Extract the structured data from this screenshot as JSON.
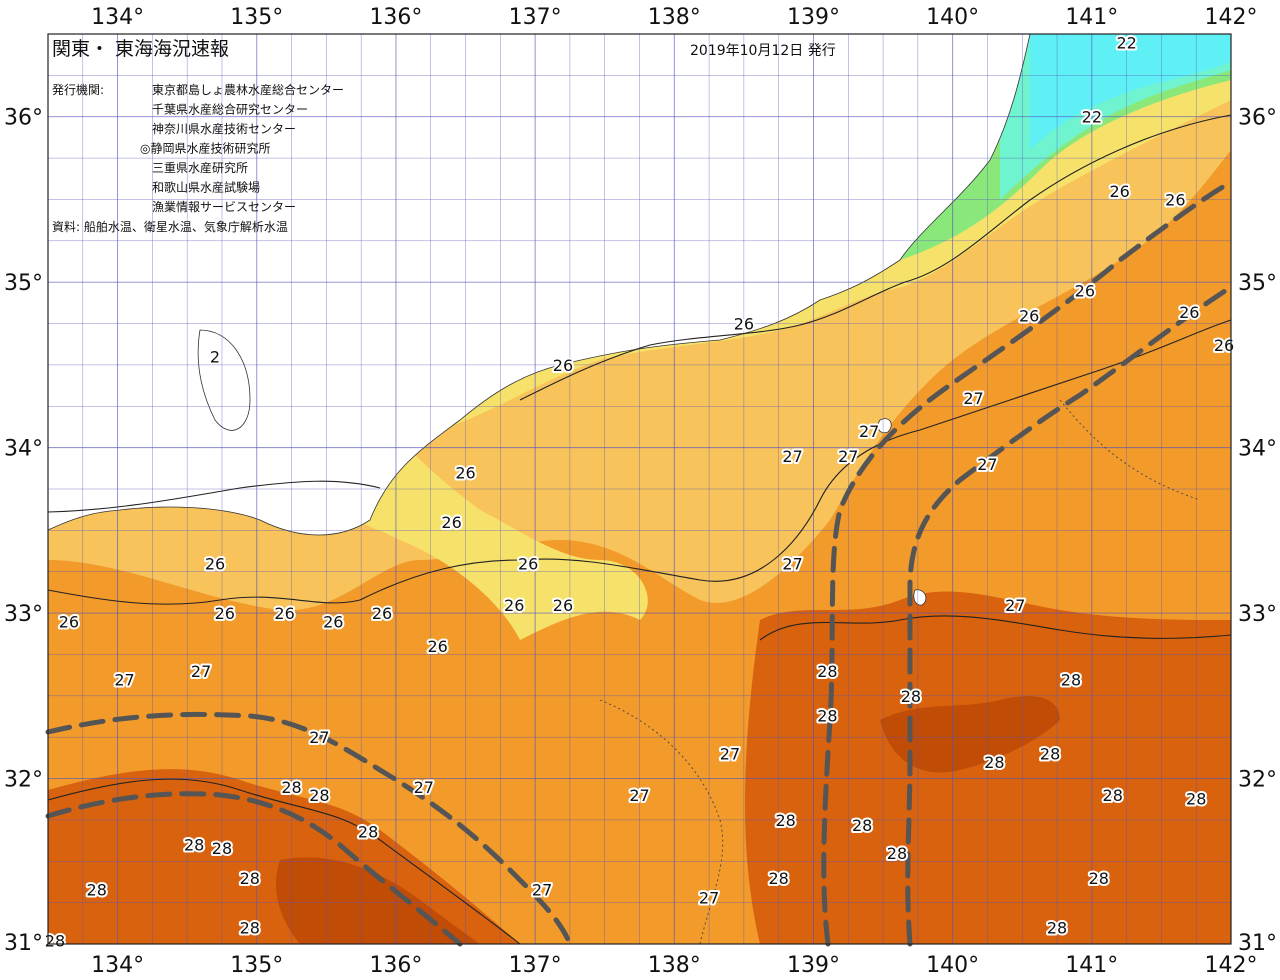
{
  "map": {
    "title": "関東・ 東海海況速報",
    "date": "2019年10月12日 発行",
    "publisher_label": "発行機関:",
    "publishers": [
      "東京都島しょ農林水産総合センター",
      "千葉県水産総合研究センター",
      "神奈川県水産技術センター",
      "◎静岡県水産技術研究所",
      "三重県水産研究所",
      "和歌山県水産試験場",
      "漁業情報サービスセンター"
    ],
    "sources": "資料: 船舶水温、衛星水温、気象庁解析水温",
    "lon_ticks": [
      "134°",
      "135°",
      "136°",
      "137°",
      "138°",
      "139°",
      "140°",
      "141°",
      "142°"
    ],
    "lat_ticks": [
      "36°",
      "35°",
      "34°",
      "33°",
      "32°",
      "31°"
    ],
    "extent": {
      "lon_min": 133.5,
      "lon_max": 142.0,
      "lat_min": 31.0,
      "lat_max": 36.5
    },
    "colors": {
      "temp_22": "#5ef0f5",
      "temp_23": "#70f4d0",
      "temp_24": "#8ae87a",
      "temp_25": "#f6e26a",
      "temp_26": "#f7c35a",
      "temp_27": "#f29a2a",
      "temp_28": "#d8620e",
      "temp_29": "#c04c06",
      "land": "#ffffff",
      "grid": "#5555bb",
      "kuroshio_axis": "#555555"
    },
    "isotherm_labels": [
      {
        "text": "22",
        "lon": 141.25,
        "lat": 36.45
      },
      {
        "text": "22",
        "lon": 141.0,
        "lat": 36.0
      },
      {
        "text": "26",
        "lon": 141.2,
        "lat": 35.55
      },
      {
        "text": "26",
        "lon": 141.6,
        "lat": 35.5
      },
      {
        "text": "26",
        "lon": 140.95,
        "lat": 34.95
      },
      {
        "text": "26",
        "lon": 140.55,
        "lat": 34.8
      },
      {
        "text": "26",
        "lon": 141.7,
        "lat": 34.82
      },
      {
        "text": "26",
        "lon": 141.95,
        "lat": 34.62
      },
      {
        "text": "26",
        "lon": 138.5,
        "lat": 34.75
      },
      {
        "text": "26",
        "lon": 137.2,
        "lat": 34.5
      },
      {
        "text": "2",
        "lon": 134.7,
        "lat": 34.55
      },
      {
        "text": "27",
        "lon": 140.15,
        "lat": 34.3
      },
      {
        "text": "27",
        "lon": 139.4,
        "lat": 34.1
      },
      {
        "text": "27",
        "lon": 139.25,
        "lat": 33.95
      },
      {
        "text": "27",
        "lon": 138.85,
        "lat": 33.95
      },
      {
        "text": "27",
        "lon": 140.25,
        "lat": 33.9
      },
      {
        "text": "26",
        "lon": 136.5,
        "lat": 33.85
      },
      {
        "text": "26",
        "lon": 136.4,
        "lat": 33.55
      },
      {
        "text": "26",
        "lon": 134.7,
        "lat": 33.3
      },
      {
        "text": "26",
        "lon": 136.95,
        "lat": 33.3
      },
      {
        "text": "27",
        "lon": 138.85,
        "lat": 33.3
      },
      {
        "text": "26",
        "lon": 134.77,
        "lat": 33.0
      },
      {
        "text": "26",
        "lon": 135.2,
        "lat": 33.0
      },
      {
        "text": "26",
        "lon": 135.55,
        "lat": 32.95
      },
      {
        "text": "26",
        "lon": 135.9,
        "lat": 33.0
      },
      {
        "text": "26",
        "lon": 136.85,
        "lat": 33.05
      },
      {
        "text": "26",
        "lon": 137.2,
        "lat": 33.05
      },
      {
        "text": "26",
        "lon": 136.3,
        "lat": 32.8
      },
      {
        "text": "26",
        "lon": 133.65,
        "lat": 32.95
      },
      {
        "text": "27",
        "lon": 140.45,
        "lat": 33.05
      },
      {
        "text": "27",
        "lon": 134.05,
        "lat": 32.6
      },
      {
        "text": "27",
        "lon": 134.6,
        "lat": 32.65
      },
      {
        "text": "28",
        "lon": 139.1,
        "lat": 32.65
      },
      {
        "text": "28",
        "lon": 139.7,
        "lat": 32.5
      },
      {
        "text": "28",
        "lon": 140.85,
        "lat": 32.6
      },
      {
        "text": "28",
        "lon": 139.1,
        "lat": 32.38
      },
      {
        "text": "27",
        "lon": 135.45,
        "lat": 32.25
      },
      {
        "text": "27",
        "lon": 138.4,
        "lat": 32.15
      },
      {
        "text": "28",
        "lon": 140.3,
        "lat": 32.1
      },
      {
        "text": "28",
        "lon": 140.7,
        "lat": 32.15
      },
      {
        "text": "28",
        "lon": 135.25,
        "lat": 31.95
      },
      {
        "text": "28",
        "lon": 135.45,
        "lat": 31.9
      },
      {
        "text": "27",
        "lon": 136.2,
        "lat": 31.95
      },
      {
        "text": "27",
        "lon": 137.75,
        "lat": 31.9
      },
      {
        "text": "28",
        "lon": 141.15,
        "lat": 31.9
      },
      {
        "text": "28",
        "lon": 141.75,
        "lat": 31.88
      },
      {
        "text": "28",
        "lon": 135.8,
        "lat": 31.68
      },
      {
        "text": "28",
        "lon": 138.8,
        "lat": 31.75
      },
      {
        "text": "28",
        "lon": 139.35,
        "lat": 31.72
      },
      {
        "text": "28",
        "lon": 134.55,
        "lat": 31.6
      },
      {
        "text": "28",
        "lon": 134.75,
        "lat": 31.58
      },
      {
        "text": "28",
        "lon": 139.6,
        "lat": 31.55
      },
      {
        "text": "28",
        "lon": 134.95,
        "lat": 31.4
      },
      {
        "text": "28",
        "lon": 141.05,
        "lat": 31.4
      },
      {
        "text": "28",
        "lon": 133.85,
        "lat": 31.33
      },
      {
        "text": "27",
        "lon": 137.05,
        "lat": 31.33
      },
      {
        "text": "28",
        "lon": 138.75,
        "lat": 31.4
      },
      {
        "text": "27",
        "lon": 138.25,
        "lat": 31.28
      },
      {
        "text": "28",
        "lon": 134.95,
        "lat": 31.1
      },
      {
        "text": "28",
        "lon": 140.75,
        "lat": 31.1
      },
      {
        "text": "28",
        "lon": 133.55,
        "lat": 31.02
      }
    ]
  }
}
